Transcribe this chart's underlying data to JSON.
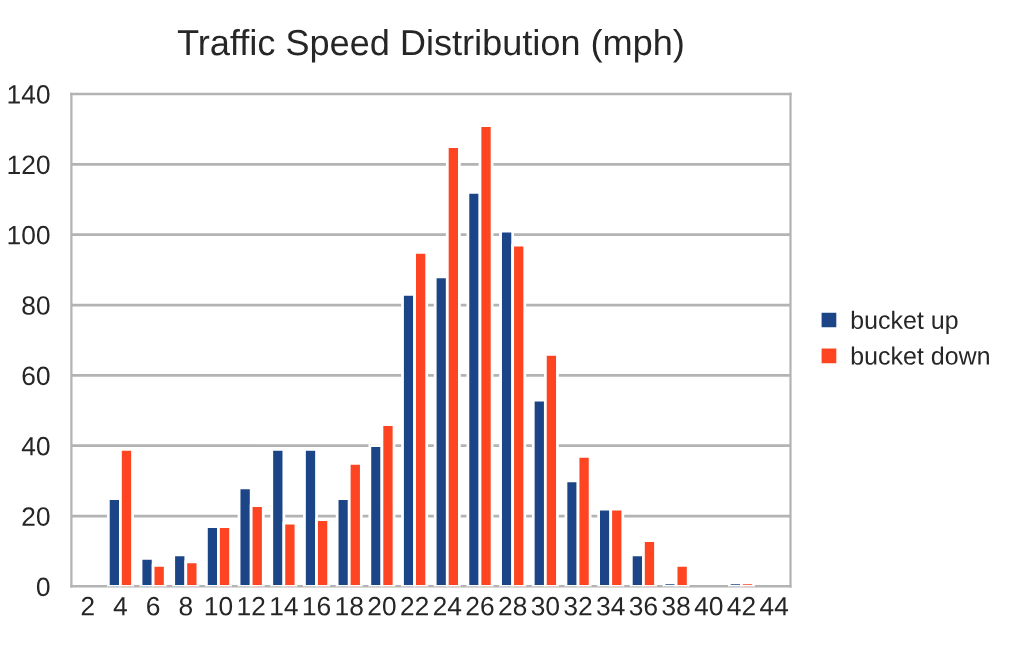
{
  "chart_data": {
    "type": "bar",
    "title": "Traffic Speed Distribution (mph)",
    "categories": [
      "2",
      "4",
      "6",
      "8",
      "10",
      "12",
      "14",
      "16",
      "18",
      "20",
      "22",
      "24",
      "26",
      "28",
      "30",
      "32",
      "34",
      "36",
      "38",
      "40",
      "42",
      "44"
    ],
    "series": [
      {
        "name": "bucket up",
        "color": "#1c4587",
        "values": [
          null,
          25,
          8,
          9,
          17,
          28,
          39,
          39,
          25,
          40,
          83,
          88,
          112,
          101,
          53,
          30,
          22,
          9,
          1,
          null,
          1,
          null
        ]
      },
      {
        "name": "bucket down",
        "color": "#ff4422",
        "values": [
          null,
          39,
          6,
          7,
          17,
          23,
          18,
          19,
          35,
          46,
          95,
          125,
          131,
          97,
          66,
          37,
          22,
          13,
          6,
          null,
          1,
          null
        ]
      }
    ],
    "ylim": [
      0,
      140
    ],
    "yticks": [
      0,
      20,
      40,
      60,
      80,
      100,
      120,
      140
    ],
    "grid": "y",
    "legend": "right"
  }
}
